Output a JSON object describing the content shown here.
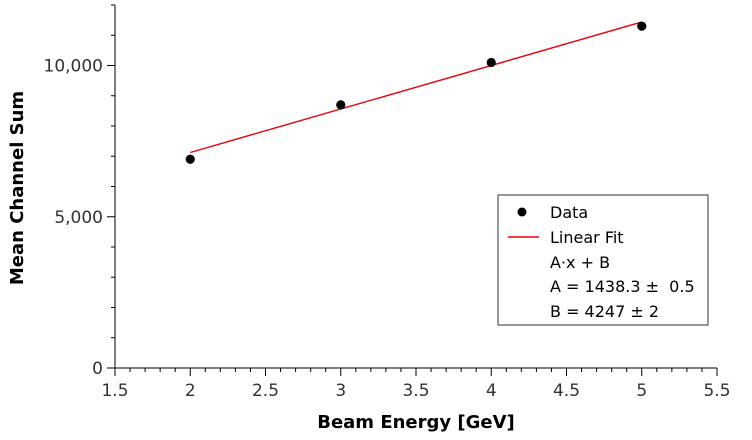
{
  "chart_data": {
    "type": "scatter",
    "title": "",
    "xlabel": "Beam Energy [GeV]",
    "ylabel": "Mean Channel Sum",
    "xlim": [
      1.5,
      5.5
    ],
    "ylim": [
      0,
      12000
    ],
    "x_ticks": [
      1.5,
      2,
      2.5,
      3,
      3.5,
      4,
      4.5,
      5,
      5.5
    ],
    "x_tick_labels": [
      "1.5",
      "2",
      "2.5",
      "3",
      "3.5",
      "4",
      "4.5",
      "5",
      "5.5"
    ],
    "y_ticks": [
      0,
      5000,
      10000
    ],
    "y_tick_labels": [
      "0",
      "5,000",
      "10,000"
    ],
    "grid": false,
    "series": [
      {
        "name": "Data",
        "type": "scatter",
        "x": [
          2,
          3,
          4,
          5
        ],
        "y": [
          6900,
          8700,
          10100,
          11300
        ],
        "color": "#000000"
      },
      {
        "name": "Linear Fit",
        "type": "line",
        "x": [
          2,
          5
        ],
        "y": [
          7124,
          11439
        ],
        "color": "#e8000b"
      }
    ],
    "legend": {
      "position": "bottom-right",
      "entries": [
        "Data",
        "Linear Fit"
      ],
      "fit_formula": "A·x + B",
      "fit_param_a": "A = 1438.3 ±  0.5",
      "fit_param_b": "B = 4247 ± 2"
    }
  }
}
